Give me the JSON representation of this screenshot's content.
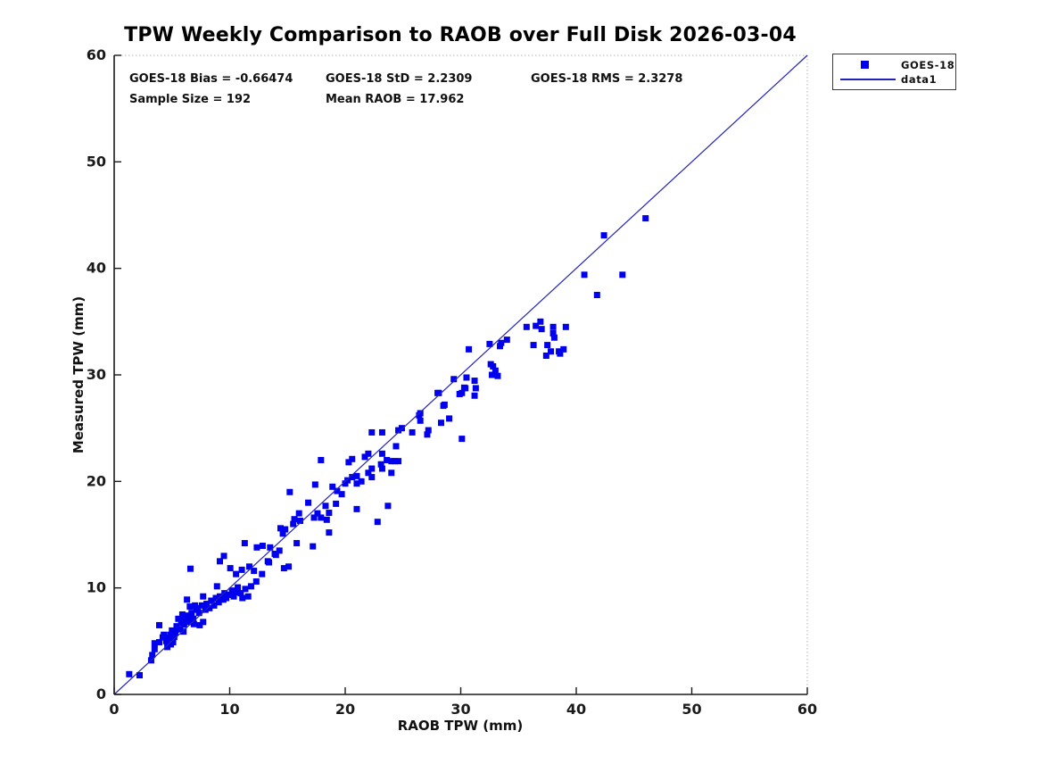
{
  "title": "TPW Weekly Comparison to RAOB over Full Disk 2026-03-04",
  "stats": {
    "bias": "GOES-18 Bias = -0.66474",
    "std": "GOES-18 StD = 2.2309",
    "rms": "GOES-18 RMS = 2.3278",
    "sample_size": "Sample Size = 192",
    "mean_raob": "Mean RAOB = 17.962"
  },
  "legend": {
    "entries": [
      {
        "label": "GOES-18",
        "marker": "filled-square",
        "color": "#0000ee"
      },
      {
        "label": "data1",
        "marker": "line",
        "color": "#2222bb"
      }
    ]
  },
  "colors": {
    "scatter": "#0000ee",
    "identity_line": "#2222bb",
    "axis": "#1a1a1a",
    "box_faint": "#b5b5b5"
  },
  "chart_data": {
    "type": "scatter",
    "title": "TPW Weekly Comparison to RAOB over Full Disk 2026-03-04",
    "xlabel": "RAOB TPW (mm)",
    "ylabel": "Measured TPW (mm)",
    "xlim": [
      0,
      60
    ],
    "ylim": [
      0,
      60
    ],
    "xticks": [
      0,
      10,
      20,
      30,
      40,
      50,
      60
    ],
    "yticks": [
      0,
      10,
      20,
      30,
      40,
      50,
      60
    ],
    "grid": false,
    "legend_position": "outside-top-right",
    "annotations": [
      "GOES-18 Bias = -0.66474",
      "GOES-18 StD = 2.2309",
      "GOES-18 RMS = 2.3278",
      "Sample Size = 192",
      "Mean RAOB = 17.962"
    ],
    "series": [
      {
        "name": "GOES-18",
        "type": "scatter",
        "marker": "filled-square",
        "color": "#0000ee",
        "points": [
          [
            1.3,
            1.9
          ],
          [
            2.2,
            1.8
          ],
          [
            3.2,
            3.2
          ],
          [
            3.3,
            3.7
          ],
          [
            3.5,
            4.25
          ],
          [
            3.5,
            4.8
          ],
          [
            3.9,
            4.9
          ],
          [
            3.9,
            6.5
          ],
          [
            4.2,
            5.35
          ],
          [
            4.3,
            5.6
          ],
          [
            4.5,
            5.0
          ],
          [
            4.6,
            4.45
          ],
          [
            4.7,
            5.3
          ],
          [
            4.85,
            5.6
          ],
          [
            4.9,
            4.7
          ],
          [
            5.0,
            6.0
          ],
          [
            5.1,
            4.9
          ],
          [
            5.2,
            5.4
          ],
          [
            5.3,
            5.85
          ],
          [
            5.4,
            6.4
          ],
          [
            5.55,
            7.1
          ],
          [
            5.7,
            6.1
          ],
          [
            5.8,
            6.7
          ],
          [
            5.9,
            7.5
          ],
          [
            5.95,
            7.1
          ],
          [
            6.0,
            5.9
          ],
          [
            6.05,
            6.55
          ],
          [
            6.2,
            6.95
          ],
          [
            6.3,
            8.9
          ],
          [
            6.35,
            7.4
          ],
          [
            6.45,
            6.8
          ],
          [
            6.55,
            8.25
          ],
          [
            6.6,
            7.25
          ],
          [
            6.6,
            11.8
          ],
          [
            6.7,
            7.65
          ],
          [
            6.85,
            7.1
          ],
          [
            6.9,
            6.6
          ],
          [
            7.0,
            8.35
          ],
          [
            7.1,
            7.95
          ],
          [
            7.25,
            8.1
          ],
          [
            7.35,
            7.65
          ],
          [
            7.4,
            6.5
          ],
          [
            7.6,
            8.35
          ],
          [
            7.7,
            6.8
          ],
          [
            7.7,
            9.2
          ],
          [
            7.9,
            7.95
          ],
          [
            8.0,
            8.5
          ],
          [
            8.25,
            8.1
          ],
          [
            8.4,
            8.8
          ],
          [
            8.65,
            8.35
          ],
          [
            8.8,
            9.05
          ],
          [
            8.9,
            10.15
          ],
          [
            9.05,
            8.65
          ],
          [
            9.15,
            9.2
          ],
          [
            9.15,
            12.5
          ],
          [
            9.45,
            8.9
          ],
          [
            9.5,
            13.0
          ],
          [
            9.55,
            9.5
          ],
          [
            9.7,
            9.05
          ],
          [
            9.95,
            9.35
          ],
          [
            10.05,
            11.85
          ],
          [
            10.2,
            9.75
          ],
          [
            10.35,
            9.2
          ],
          [
            10.55,
            11.3
          ],
          [
            10.6,
            9.6
          ],
          [
            10.7,
            10.05
          ],
          [
            10.95,
            9.5
          ],
          [
            11.05,
            11.7
          ],
          [
            11.1,
            9.05
          ],
          [
            11.3,
            14.2
          ],
          [
            11.35,
            9.9
          ],
          [
            11.6,
            9.2
          ],
          [
            11.7,
            12.0
          ],
          [
            11.85,
            10.15
          ],
          [
            12.1,
            11.6
          ],
          [
            12.3,
            10.6
          ],
          [
            12.35,
            13.8
          ],
          [
            12.8,
            11.3
          ],
          [
            12.85,
            13.95
          ],
          [
            13.3,
            12.5
          ],
          [
            13.4,
            12.4
          ],
          [
            13.5,
            13.8
          ],
          [
            13.9,
            13.2
          ],
          [
            14.0,
            13.1
          ],
          [
            14.3,
            13.5
          ],
          [
            14.4,
            15.6
          ],
          [
            14.6,
            15.1
          ],
          [
            14.7,
            11.85
          ],
          [
            14.8,
            15.5
          ],
          [
            15.1,
            12.0
          ],
          [
            15.2,
            19.0
          ],
          [
            15.5,
            16.0
          ],
          [
            15.6,
            16.45
          ],
          [
            15.8,
            14.2
          ],
          [
            16.0,
            17.0
          ],
          [
            16.1,
            16.3
          ],
          [
            16.8,
            18.0
          ],
          [
            17.2,
            13.9
          ],
          [
            17.3,
            16.6
          ],
          [
            17.4,
            19.7
          ],
          [
            17.6,
            17.0
          ],
          [
            17.9,
            16.6
          ],
          [
            17.9,
            22.0
          ],
          [
            18.3,
            17.7
          ],
          [
            18.4,
            16.4
          ],
          [
            18.6,
            15.2
          ],
          [
            18.6,
            17.05
          ],
          [
            18.9,
            19.5
          ],
          [
            19.2,
            17.9
          ],
          [
            19.3,
            19.1
          ],
          [
            19.7,
            18.8
          ],
          [
            20.0,
            19.8
          ],
          [
            20.2,
            20.1
          ],
          [
            20.3,
            21.8
          ],
          [
            20.6,
            20.4
          ],
          [
            20.6,
            22.1
          ],
          [
            21.0,
            17.4
          ],
          [
            21.0,
            19.8
          ],
          [
            21.0,
            20.5
          ],
          [
            21.4,
            20.0
          ],
          [
            21.7,
            22.3
          ],
          [
            22.0,
            20.8
          ],
          [
            22.0,
            22.6
          ],
          [
            22.3,
            20.4
          ],
          [
            22.3,
            21.2
          ],
          [
            22.3,
            24.6
          ],
          [
            22.8,
            16.2
          ],
          [
            23.1,
            21.6
          ],
          [
            23.2,
            21.2
          ],
          [
            23.2,
            22.6
          ],
          [
            23.2,
            24.6
          ],
          [
            23.6,
            22.0
          ],
          [
            23.7,
            17.7
          ],
          [
            24.0,
            20.8
          ],
          [
            24.0,
            21.9
          ],
          [
            24.3,
            21.9
          ],
          [
            24.4,
            23.3
          ],
          [
            24.6,
            21.9
          ],
          [
            24.6,
            24.8
          ],
          [
            24.9,
            25.0
          ],
          [
            25.8,
            24.6
          ],
          [
            26.4,
            26.2
          ],
          [
            26.5,
            25.7
          ],
          [
            26.5,
            26.4
          ],
          [
            27.1,
            24.4
          ],
          [
            27.2,
            24.8
          ],
          [
            28.0,
            28.3
          ],
          [
            28.1,
            28.3
          ],
          [
            28.3,
            25.5
          ],
          [
            28.5,
            27.1
          ],
          [
            28.6,
            27.2
          ],
          [
            29.0,
            25.9
          ],
          [
            29.4,
            29.6
          ],
          [
            29.9,
            28.2
          ],
          [
            30.1,
            24.0
          ],
          [
            30.1,
            28.3
          ],
          [
            30.3,
            28.8
          ],
          [
            30.4,
            28.75
          ],
          [
            30.5,
            29.75
          ],
          [
            30.7,
            32.4
          ],
          [
            31.2,
            28.05
          ],
          [
            31.2,
            29.45
          ],
          [
            31.3,
            28.75
          ],
          [
            32.5,
            32.9
          ],
          [
            32.6,
            31.0
          ],
          [
            32.7,
            30.0
          ],
          [
            32.8,
            30.8
          ],
          [
            33.0,
            30.4
          ],
          [
            33.2,
            29.9
          ],
          [
            33.4,
            32.7
          ],
          [
            33.5,
            33.0
          ],
          [
            34.0,
            33.3
          ],
          [
            35.7,
            34.5
          ],
          [
            36.3,
            32.8
          ],
          [
            36.5,
            34.6
          ],
          [
            36.9,
            35.0
          ],
          [
            37.0,
            34.3
          ],
          [
            37.4,
            31.8
          ],
          [
            37.5,
            32.8
          ],
          [
            37.8,
            32.2
          ],
          [
            38.0,
            33.9
          ],
          [
            38.0,
            34.5
          ],
          [
            38.1,
            33.5
          ],
          [
            38.5,
            32.2
          ],
          [
            38.6,
            32.0
          ],
          [
            38.9,
            32.4
          ],
          [
            39.1,
            34.5
          ],
          [
            40.7,
            39.4
          ],
          [
            41.8,
            37.5
          ],
          [
            42.4,
            43.1
          ],
          [
            44.0,
            39.4
          ],
          [
            46.0,
            44.7
          ]
        ]
      },
      {
        "name": "data1",
        "type": "line",
        "color": "#2222bb",
        "points": [
          [
            0,
            0
          ],
          [
            60,
            60
          ]
        ]
      }
    ]
  }
}
